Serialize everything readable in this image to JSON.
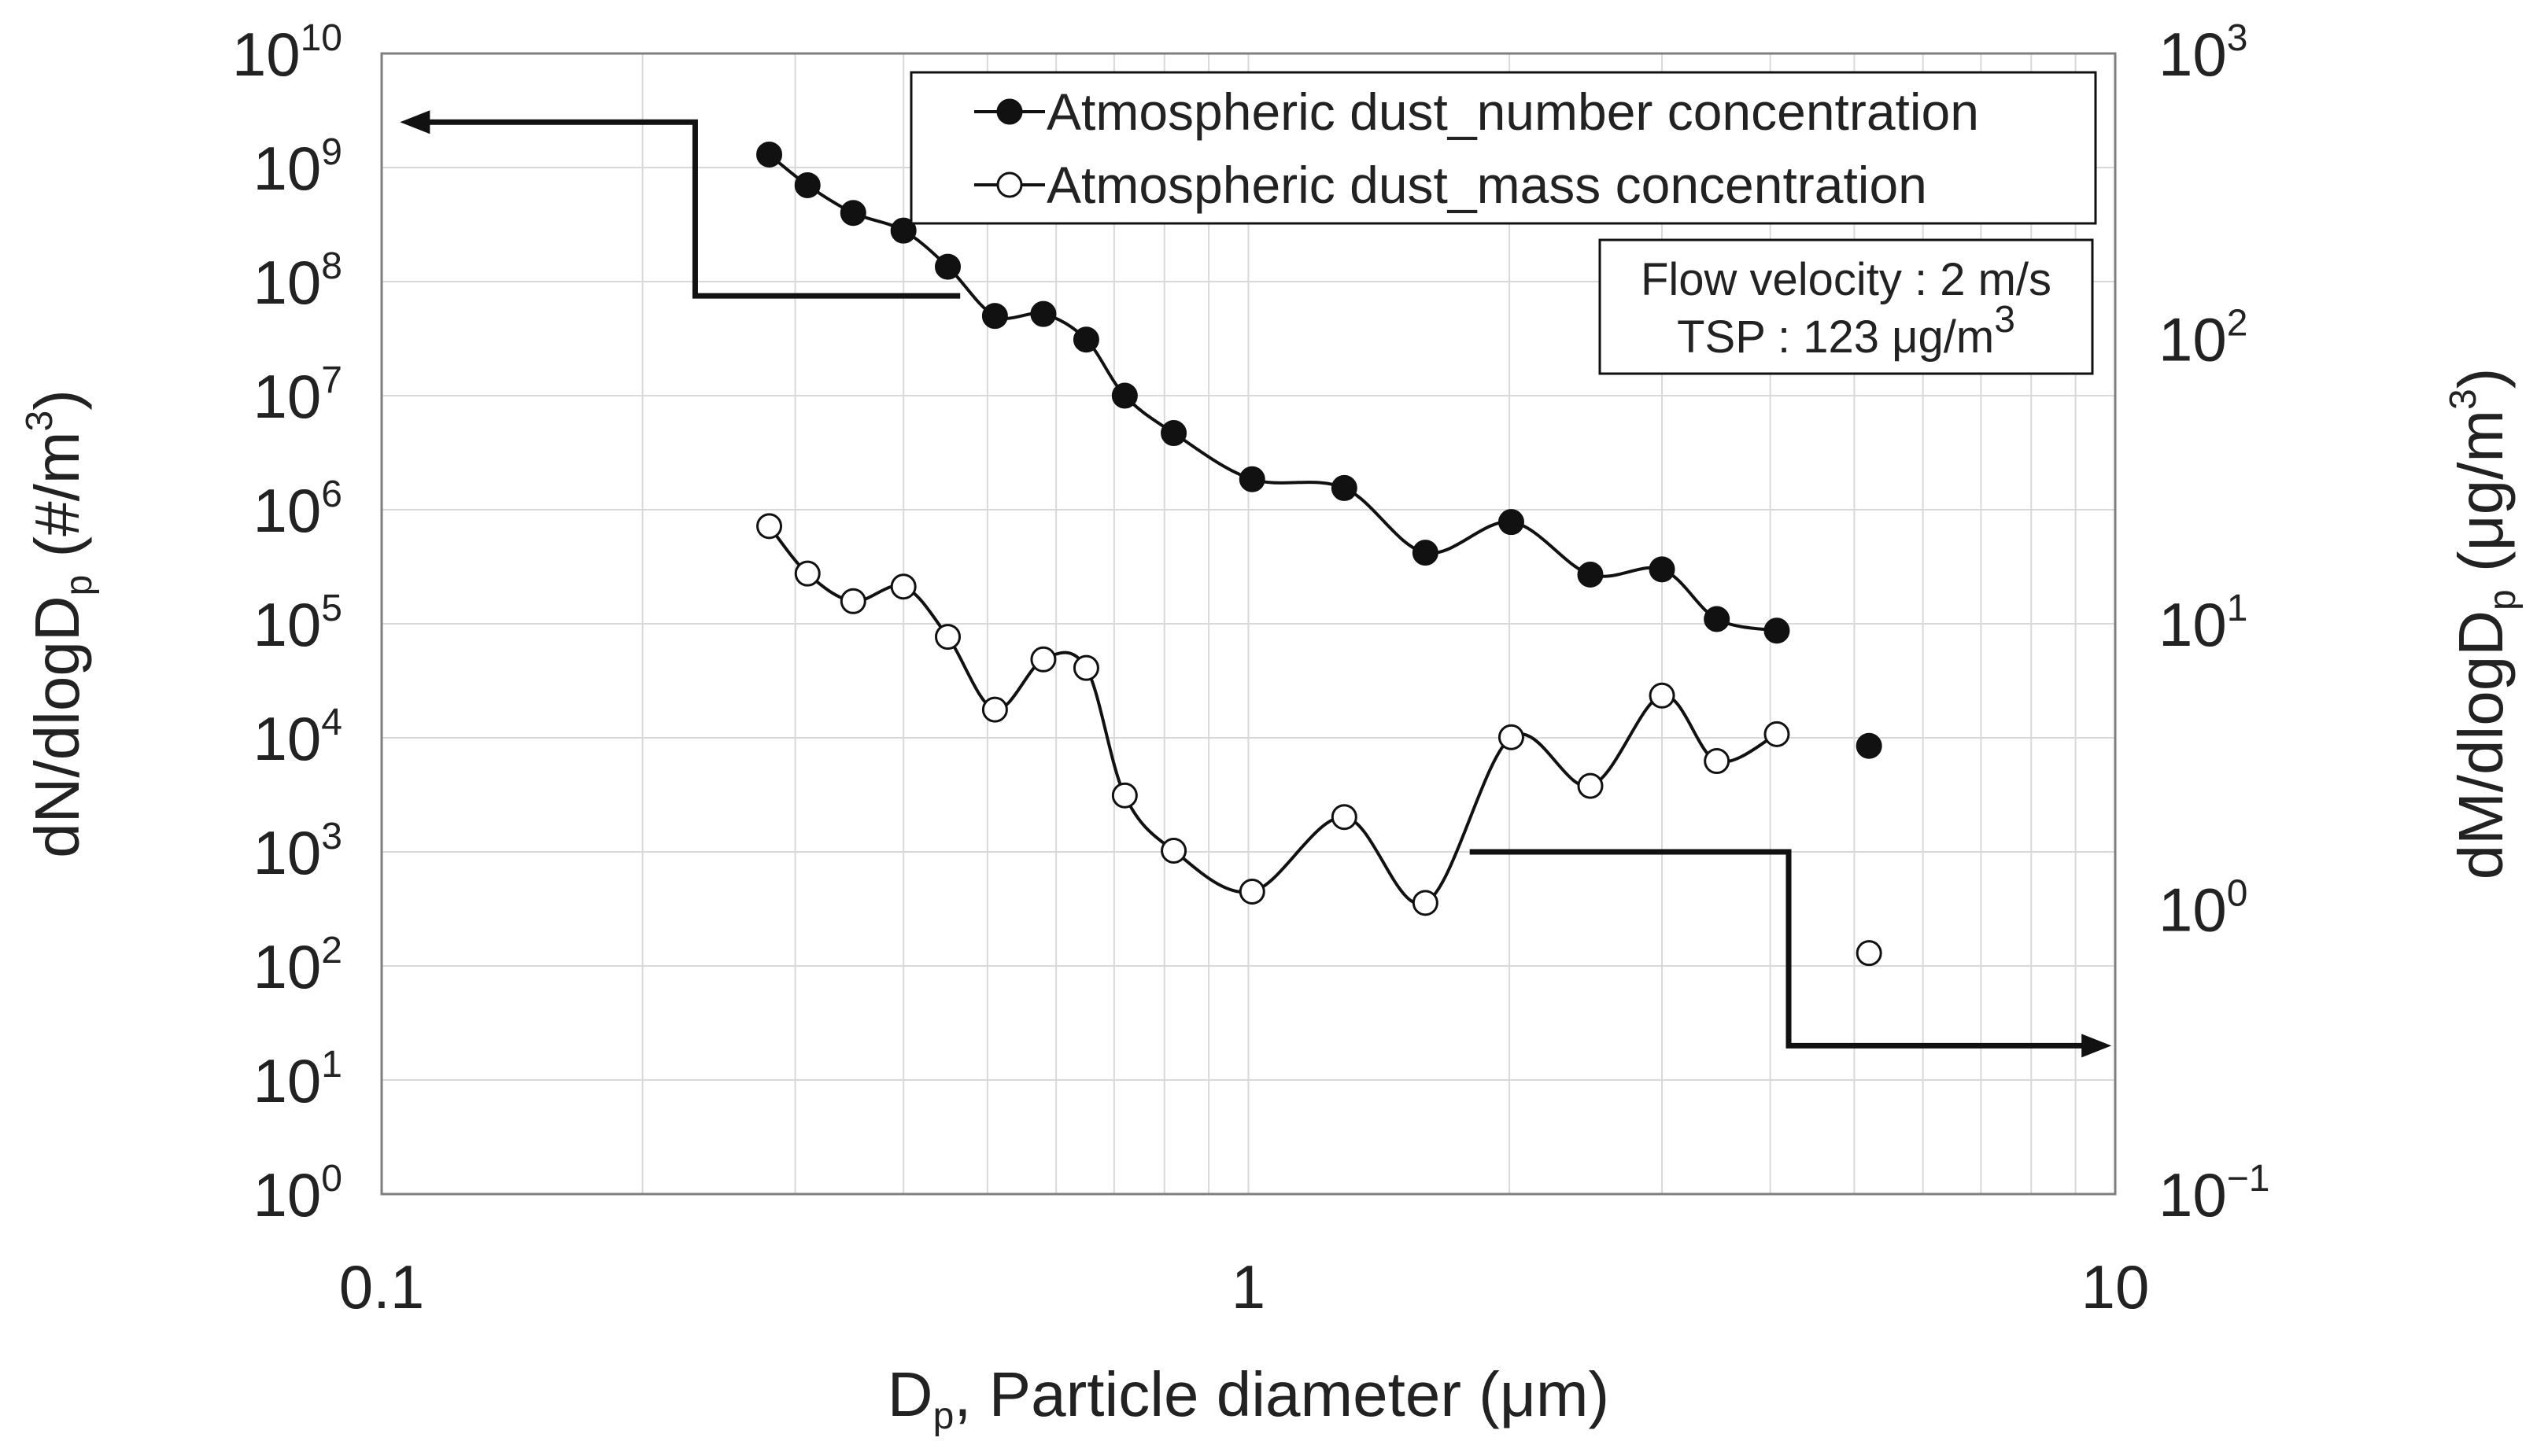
{
  "chart_data": {
    "type": "scatter",
    "xscale": "log",
    "xlim": [
      0.1,
      10
    ],
    "x_ticks": [
      "0.1",
      "1",
      "10"
    ],
    "xlabel": {
      "main": "D",
      "sub": "p",
      "rest": ", Particle diameter (μm)"
    },
    "y_left": {
      "scale": "log",
      "lim": [
        1,
        10000000000.0
      ],
      "tick_exponents": [
        0,
        1,
        2,
        3,
        4,
        5,
        6,
        7,
        8,
        9,
        10
      ],
      "label": {
        "pre": "dN/dlogD",
        "sub": "p",
        "mid": " (#/m",
        "sup": "3",
        "post": ")"
      }
    },
    "y_right": {
      "scale": "log",
      "lim": [
        0.1,
        1000
      ],
      "tick_exponents": [
        -1,
        0,
        1,
        2,
        3
      ],
      "label": {
        "pre": "dM/dlogD",
        "sub": "p",
        "mid": " (μg/m",
        "sup": "3",
        "post": ")"
      }
    },
    "tick_base": "10",
    "grid": true,
    "legend_position": "top-right",
    "series": [
      {
        "name": "Atmospheric dust_number concentration",
        "axis": "left",
        "marker": "filled-circle",
        "points": [
          {
            "x": 0.28,
            "y": 1300000000.0
          },
          {
            "x": 0.31,
            "y": 700000000.0
          },
          {
            "x": 0.35,
            "y": 400000000.0
          },
          {
            "x": 0.4,
            "y": 280000000.0
          },
          {
            "x": 0.45,
            "y": 135000000.0
          },
          {
            "x": 0.51,
            "y": 50000000.0
          },
          {
            "x": 0.58,
            "y": 52000000.0
          },
          {
            "x": 0.65,
            "y": 31000000.0
          },
          {
            "x": 0.72,
            "y": 10000000.0
          },
          {
            "x": 0.82,
            "y": 4700000.0
          },
          {
            "x": 1.01,
            "y": 1850000.0
          },
          {
            "x": 1.29,
            "y": 1550000.0
          },
          {
            "x": 1.6,
            "y": 420000.0
          },
          {
            "x": 2.01,
            "y": 780000.0
          },
          {
            "x": 2.48,
            "y": 270000.0
          },
          {
            "x": 3.0,
            "y": 300000.0
          },
          {
            "x": 3.47,
            "y": 110000.0
          },
          {
            "x": 4.07,
            "y": 87000.0
          }
        ],
        "extra_points": [
          {
            "x": 5.2,
            "y": 8500.0
          }
        ]
      },
      {
        "name": "Atmospheric dust_mass concentration",
        "axis": "right",
        "marker": "open-circle",
        "points": [
          {
            "x": 0.28,
            "y": 22
          },
          {
            "x": 0.31,
            "y": 15
          },
          {
            "x": 0.35,
            "y": 12
          },
          {
            "x": 0.4,
            "y": 13.5
          },
          {
            "x": 0.45,
            "y": 9
          },
          {
            "x": 0.51,
            "y": 5
          },
          {
            "x": 0.58,
            "y": 7.5
          },
          {
            "x": 0.65,
            "y": 7
          },
          {
            "x": 0.72,
            "y": 2.5
          },
          {
            "x": 0.82,
            "y": 1.6
          },
          {
            "x": 1.01,
            "y": 1.15
          },
          {
            "x": 1.29,
            "y": 2.1
          },
          {
            "x": 1.6,
            "y": 1.05
          },
          {
            "x": 2.01,
            "y": 4
          },
          {
            "x": 2.48,
            "y": 2.7
          },
          {
            "x": 3.0,
            "y": 5.6
          },
          {
            "x": 3.47,
            "y": 3.3
          },
          {
            "x": 4.07,
            "y": 4.1
          }
        ],
        "extra_points": [
          {
            "x": 5.2,
            "y": 0.7
          }
        ]
      }
    ],
    "annotation": {
      "line1": "Flow velocity : 2 m/s",
      "line2_pre": "TSP : 123 μg/m",
      "line2_sup": "3"
    },
    "arrows": [
      {
        "points": [
          [
            0.465,
            75000000.0
          ],
          [
            0.23,
            75000000.0
          ],
          [
            0.23,
            2500000000.0
          ],
          [
            0.105,
            2500000000.0
          ]
        ],
        "direction": "left",
        "meaning": "points to left axis"
      },
      {
        "points": [
          [
            1.8,
            1000.0
          ],
          [
            4.2,
            1000.0
          ],
          [
            4.2,
            20
          ],
          [
            9.9,
            20
          ]
        ],
        "direction": "right",
        "meaning": "points to right axis"
      }
    ],
    "colors": {
      "line": "#111111",
      "grid": "#d9d9d9",
      "open_marker_fill": "#ffffff"
    }
  }
}
